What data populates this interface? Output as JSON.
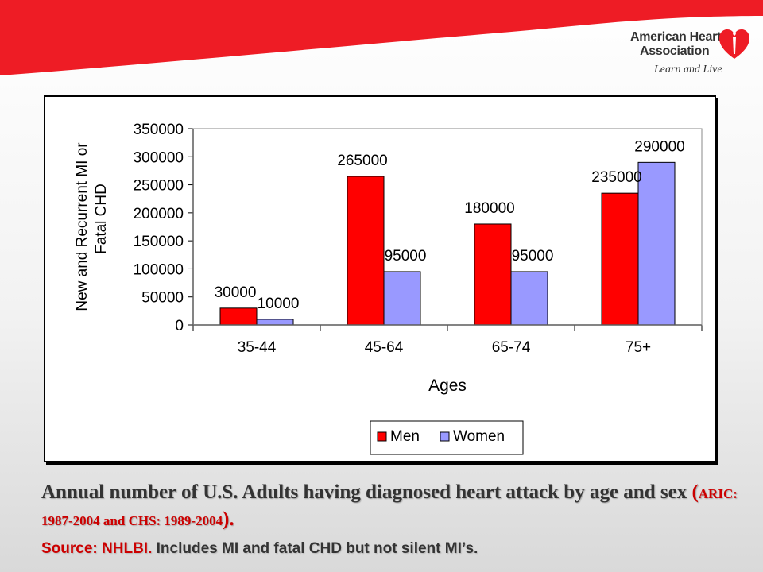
{
  "branding": {
    "org_line1": "American Heart",
    "org_line2": "Association",
    "tagline": "Learn and Live",
    "band_color": "#ee1c25"
  },
  "chart_data": {
    "type": "bar",
    "categories": [
      "35-44",
      "45-64",
      "65-74",
      "75+"
    ],
    "series": [
      {
        "name": "Men",
        "values": [
          30000,
          265000,
          180000,
          235000
        ],
        "color": "#ff0000"
      },
      {
        "name": "Women",
        "values": [
          10000,
          95000,
          95000,
          290000
        ],
        "color": "#9999ff"
      }
    ],
    "data_labels": {
      "Men": [
        "30000",
        "265000",
        "180000",
        "235000"
      ],
      "Women": [
        "10000",
        "95000",
        "95000",
        "290000"
      ]
    },
    "title": "",
    "xlabel": "Ages",
    "ylabel_line1": "New and Recurrent MI or",
    "ylabel_line2": "Fatal CHD",
    "ylim": [
      0,
      350000
    ],
    "yticks": [
      0,
      50000,
      100000,
      150000,
      200000,
      250000,
      300000,
      350000
    ],
    "ytick_labels": [
      "0",
      "50000",
      "100000",
      "150000",
      "200000",
      "250000",
      "300000",
      "350000"
    ],
    "grid": false,
    "legend_position": "bottom"
  },
  "caption": {
    "main": "Annual number of U.S. Adults having  diagnosed heart attack by age and sex ",
    "paren_open": "(",
    "citation": "ARIC: 1987-2004 and CHS: 1989-2004",
    "paren_close": ")."
  },
  "source": {
    "label": "Source: NHLBI.",
    "text": "  Includes MI and fatal CHD but not silent MI’s."
  }
}
